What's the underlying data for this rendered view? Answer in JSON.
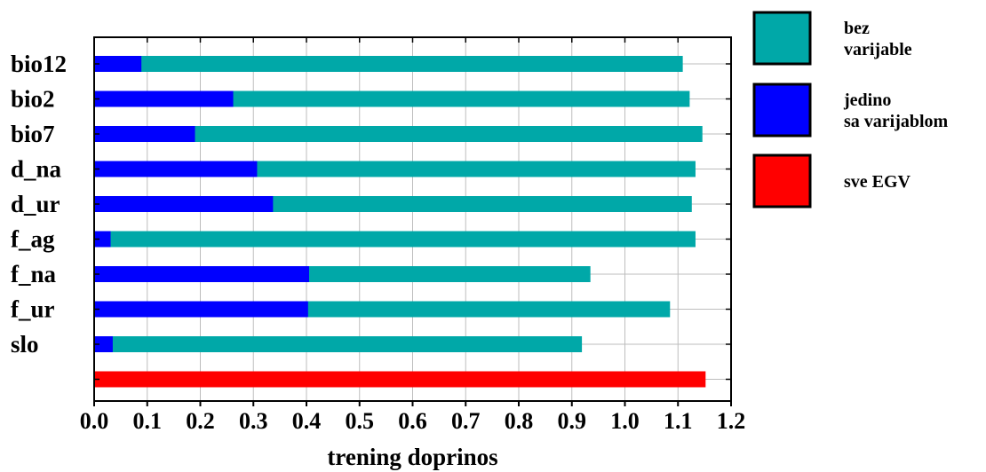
{
  "chart_data": {
    "type": "bar",
    "orientation": "horizontal",
    "categories": [
      "bio12",
      "bio2",
      "bio7",
      "d_na",
      "d_ur",
      "f_ag",
      "f_na",
      "f_ur",
      "slo",
      ""
    ],
    "series": [
      {
        "name": "bez varijable",
        "legend_lines": [
          "bez",
          "varijable"
        ],
        "color": "#00A8A8",
        "values": [
          1.109,
          1.122,
          1.146,
          1.133,
          1.126,
          1.133,
          0.935,
          1.085,
          0.919,
          null
        ]
      },
      {
        "name": "jedino sa varijablom",
        "legend_lines": [
          "jedino",
          "sa varijablom"
        ],
        "color": "#0000FF",
        "values": [
          0.089,
          0.262,
          0.19,
          0.307,
          0.337,
          0.031,
          0.405,
          0.403,
          0.035,
          null
        ]
      },
      {
        "name": "sve EGV",
        "legend_lines": [
          "sve EGV"
        ],
        "color": "#FF0000",
        "values": [
          null,
          null,
          null,
          null,
          null,
          null,
          null,
          null,
          null,
          1.152
        ]
      }
    ],
    "xlabel": "trening doprinos",
    "ylabel": "",
    "xlim": [
      0,
      1.2
    ],
    "xticks": [
      "0.0",
      "0.1",
      "0.2",
      "0.3",
      "0.4",
      "0.5",
      "0.6",
      "0.7",
      "0.8",
      "0.9",
      "1.0",
      "1.1",
      "1.2"
    ],
    "grid": true,
    "legend_position": "right"
  }
}
